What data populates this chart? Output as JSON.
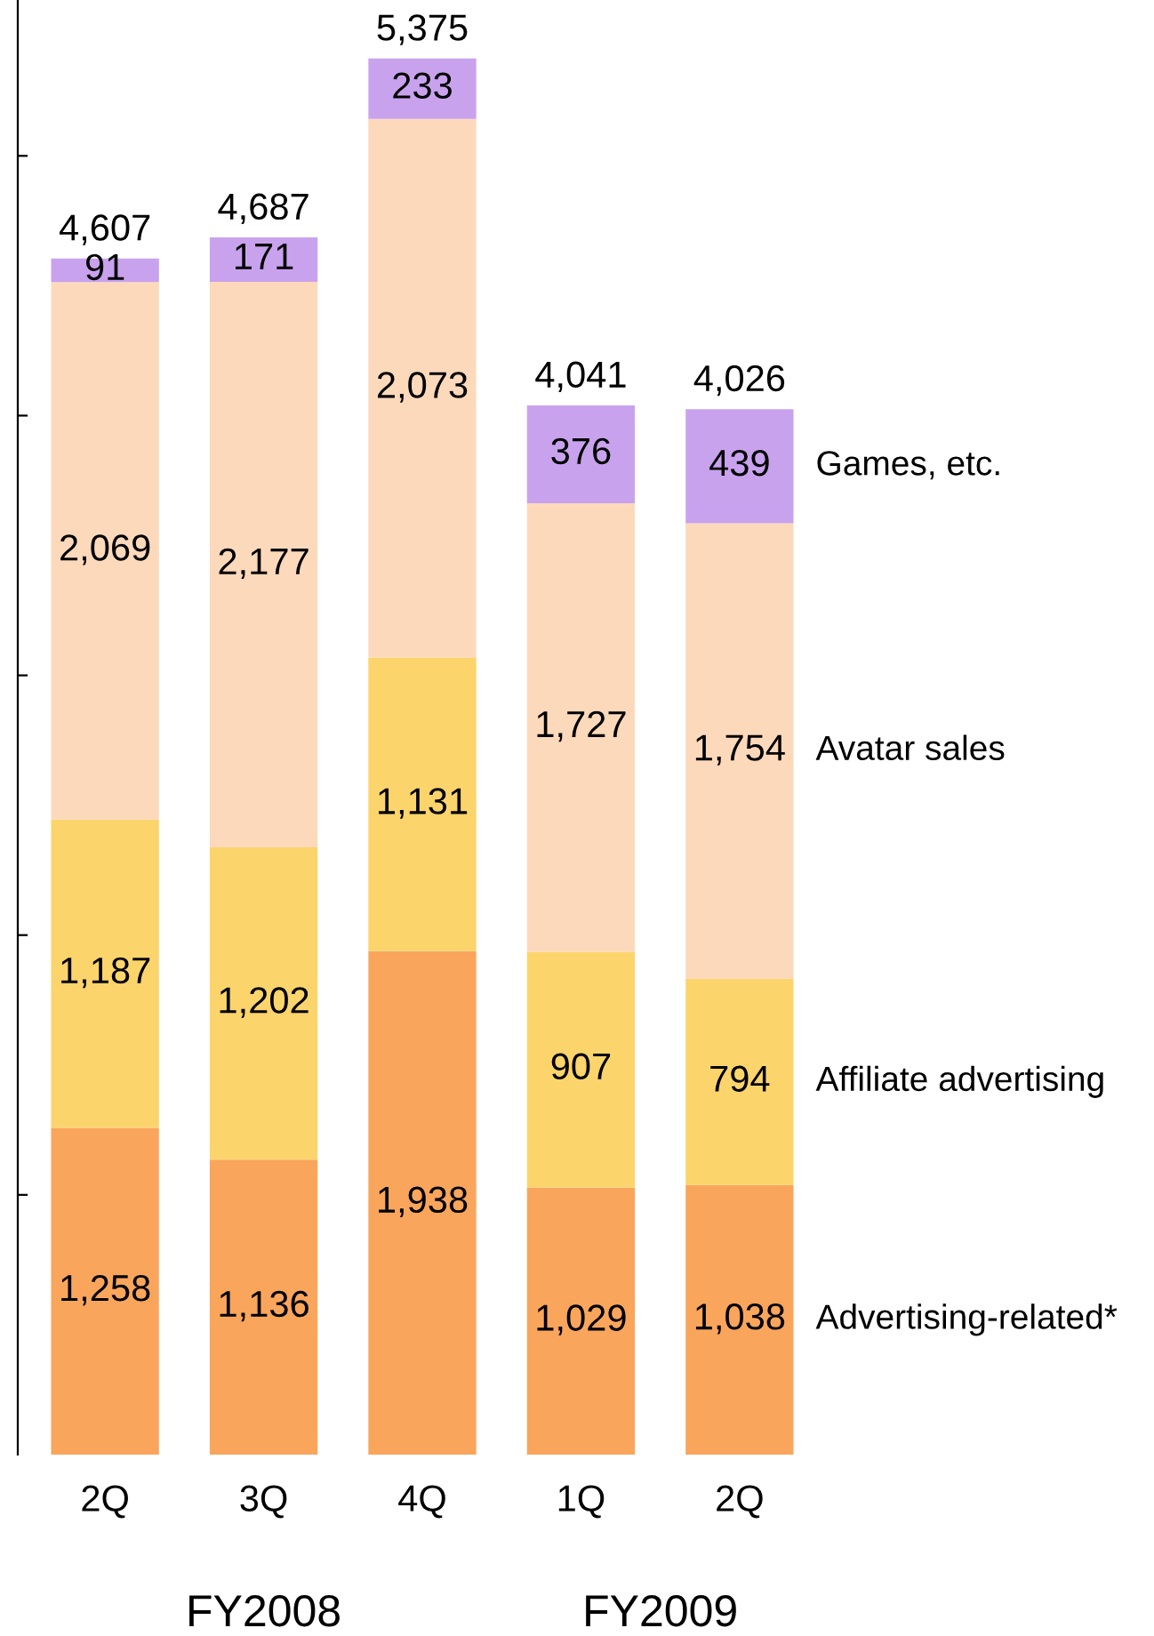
{
  "chart_data": {
    "type": "bar",
    "stacked": true,
    "categories": [
      "2Q",
      "3Q",
      "4Q",
      "1Q",
      "2Q"
    ],
    "series": [
      {
        "name": "Advertising-related*",
        "color": "#f9a55c",
        "values": [
          1258,
          1136,
          1938,
          1029,
          1038
        ],
        "value_labels": [
          "1,258",
          "1,136",
          "1,938",
          "1,029",
          "1,038"
        ]
      },
      {
        "name": "Affiliate advertising",
        "color": "#fcd46c",
        "values": [
          1187,
          1202,
          1131,
          907,
          794
        ],
        "value_labels": [
          "1,187",
          "1,202",
          "1,131",
          "907",
          "794"
        ]
      },
      {
        "name": "Avatar sales",
        "color": "#fdd9bb",
        "values": [
          2069,
          2177,
          2073,
          1727,
          1754
        ],
        "value_labels": [
          "2,069",
          "2,177",
          "2,073",
          "1,727",
          "1,754"
        ]
      },
      {
        "name": "Games, etc.",
        "color": "#c9a2ee",
        "values": [
          91,
          171,
          233,
          376,
          439
        ],
        "value_labels": [
          "91",
          "171",
          "233",
          "376",
          "439"
        ]
      }
    ],
    "totals": [
      "4,607",
      "4,687",
      "5,375",
      "4,041",
      "4,026"
    ],
    "ylim": [
      0,
      5600
    ],
    "yticks": [
      {
        "value": 1000,
        "label": null
      },
      {
        "value": 2000,
        "label": null
      },
      {
        "value": 3000,
        "label": null
      },
      {
        "value": 4000,
        "label": null
      },
      {
        "value": 5000,
        "label": null
      }
    ],
    "tick_labels": "x",
    "grid": false,
    "annotations": [
      "FY2008",
      "FY2009"
    ]
  }
}
